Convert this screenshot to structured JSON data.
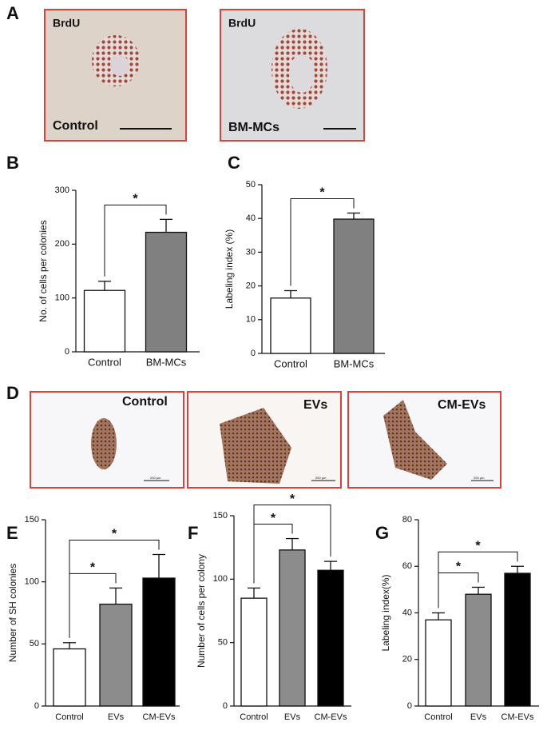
{
  "figure": {
    "A": {
      "letter": "A",
      "images": [
        {
          "stain": "BrdU",
          "label": "Control"
        },
        {
          "stain": "BrdU",
          "label": "BM-MCs"
        }
      ]
    },
    "D": {
      "letter": "D",
      "images": [
        {
          "label": "Control",
          "scale": "200 μm"
        },
        {
          "label": "EVs",
          "scale": "200 μm"
        },
        {
          "label": "CM-EVs",
          "scale": "200 μm"
        }
      ]
    }
  },
  "chart_data": [
    {
      "type": "bar",
      "panel": "B",
      "ylabel": "No. of cells per colonies",
      "categories": [
        "Control",
        "BM-MCs"
      ],
      "values": [
        114,
        222
      ],
      "errors": [
        17,
        24
      ],
      "colors": [
        "#ffffff",
        "#808080"
      ],
      "ylim": [
        0,
        300
      ],
      "yticks": [
        0,
        100,
        200,
        300
      ],
      "brackets": [
        {
          "from": "Control",
          "to": "BM-MCs",
          "label": "*"
        }
      ]
    },
    {
      "type": "bar",
      "panel": "C",
      "ylabel": "Labeling index (%)",
      "categories": [
        "Control",
        "BM-MCs"
      ],
      "values": [
        16.4,
        39.8
      ],
      "errors": [
        2.2,
        1.8
      ],
      "colors": [
        "#ffffff",
        "#808080"
      ],
      "ylim": [
        0,
        50
      ],
      "yticks": [
        0,
        10,
        20,
        30,
        40,
        50
      ],
      "brackets": [
        {
          "from": "Control",
          "to": "BM-MCs",
          "label": "*"
        }
      ]
    },
    {
      "type": "bar",
      "panel": "E",
      "ylabel": "Number of SH colonies",
      "categories": [
        "Control",
        "EVs",
        "CM-EVs"
      ],
      "values": [
        46,
        82,
        103
      ],
      "errors": [
        5,
        13,
        19
      ],
      "colors": [
        "#ffffff",
        "#8c8c8c",
        "#000000"
      ],
      "ylim": [
        0,
        150
      ],
      "yticks": [
        0,
        50,
        100,
        150
      ],
      "brackets": [
        {
          "from": "Control",
          "to": "EVs",
          "label": "*"
        },
        {
          "from": "Control",
          "to": "CM-EVs",
          "label": "*"
        }
      ]
    },
    {
      "type": "bar",
      "panel": "F",
      "ylabel": "Number of cells per colony",
      "categories": [
        "Control",
        "EVs",
        "CM-EVs"
      ],
      "values": [
        85,
        123,
        107
      ],
      "errors": [
        8,
        9,
        7
      ],
      "colors": [
        "#ffffff",
        "#8c8c8c",
        "#000000"
      ],
      "ylim": [
        0,
        150
      ],
      "yticks": [
        0,
        50,
        100,
        150
      ],
      "brackets": [
        {
          "from": "Control",
          "to": "EVs",
          "label": "*"
        },
        {
          "from": "Control",
          "to": "CM-EVs",
          "label": "*"
        }
      ]
    },
    {
      "type": "bar",
      "panel": "G",
      "ylabel": "Labeling index(%)",
      "categories": [
        "Control",
        "EVs",
        "CM-EVs"
      ],
      "values": [
        37,
        48,
        57
      ],
      "errors": [
        3,
        3,
        3
      ],
      "colors": [
        "#ffffff",
        "#8c8c8c",
        "#000000"
      ],
      "ylim": [
        0,
        80
      ],
      "yticks": [
        0,
        20,
        40,
        60,
        80
      ],
      "brackets": [
        {
          "from": "Control",
          "to": "EVs",
          "label": "*"
        },
        {
          "from": "Control",
          "to": "CM-EVs",
          "label": "*"
        }
      ]
    }
  ]
}
